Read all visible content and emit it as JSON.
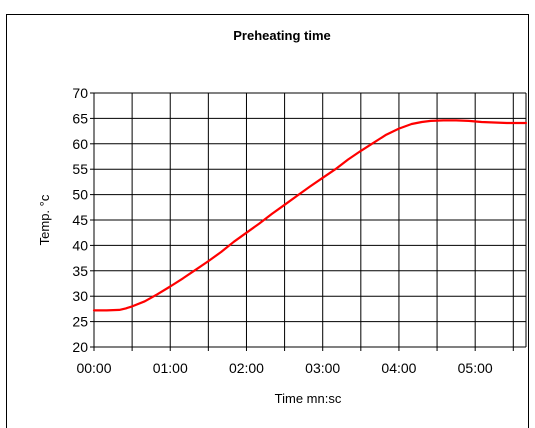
{
  "chart_data": {
    "type": "line",
    "title": "Preheating time",
    "xlabel": "Time mn:sc",
    "ylabel": "Temp. °c",
    "x_unit": "seconds",
    "xlim": [
      0,
      340
    ],
    "ylim": [
      20,
      70
    ],
    "x_ticks": [
      {
        "value": 0,
        "label": "00:00"
      },
      {
        "value": 60,
        "label": "01:00"
      },
      {
        "value": 120,
        "label": "02:00"
      },
      {
        "value": 180,
        "label": "03:00"
      },
      {
        "value": 240,
        "label": "04:00"
      },
      {
        "value": 300,
        "label": "05:00"
      }
    ],
    "x_gridlines": [
      0,
      30,
      60,
      90,
      120,
      150,
      180,
      210,
      240,
      270,
      300,
      330
    ],
    "y_ticks": [
      20,
      25,
      30,
      35,
      40,
      45,
      50,
      55,
      60,
      65,
      70
    ],
    "grid": true,
    "legend": "none",
    "series": [
      {
        "color": "#ff0000",
        "x": [
          0,
          10,
          20,
          25,
          30,
          40,
          50,
          60,
          70,
          80,
          90,
          100,
          110,
          120,
          130,
          140,
          150,
          160,
          170,
          180,
          190,
          200,
          210,
          220,
          230,
          240,
          250,
          258,
          265,
          275,
          285,
          295,
          305,
          315,
          325,
          340
        ],
        "y": [
          27.2,
          27.2,
          27.3,
          27.6,
          28.0,
          29.0,
          30.4,
          31.9,
          33.5,
          35.2,
          36.9,
          38.7,
          40.7,
          42.5,
          44.3,
          46.2,
          48.0,
          49.8,
          51.6,
          53.3,
          55.0,
          56.9,
          58.6,
          60.2,
          61.8,
          63.0,
          63.9,
          64.3,
          64.5,
          64.6,
          64.6,
          64.5,
          64.3,
          64.2,
          64.1,
          64.1
        ]
      }
    ]
  }
}
